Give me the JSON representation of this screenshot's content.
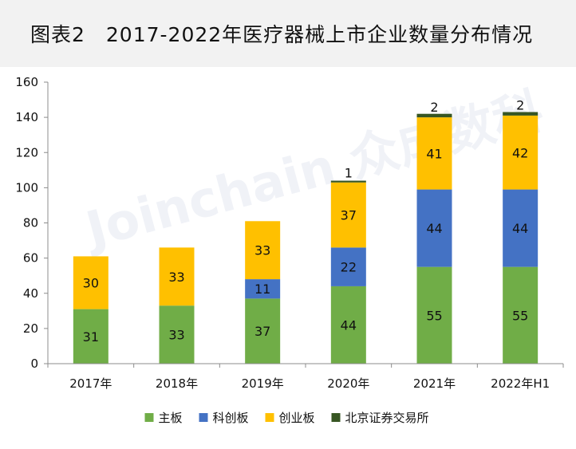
{
  "title": "图表2　2017-2022年医疗器械上市企业数量分布情况",
  "watermark": "Joinchain 众成数科",
  "chart_data": {
    "type": "bar",
    "stacked": true,
    "categories": [
      "2017年",
      "2018年",
      "2019年",
      "2020年",
      "2021年",
      "2022年H1"
    ],
    "series": [
      {
        "name": "主板",
        "color": "#70ad47",
        "values": [
          31,
          33,
          37,
          44,
          55,
          55
        ]
      },
      {
        "name": "科创板",
        "color": "#4472c4",
        "values": [
          0,
          0,
          11,
          22,
          44,
          44
        ]
      },
      {
        "name": "创业板",
        "color": "#ffc000",
        "values": [
          30,
          33,
          33,
          37,
          41,
          42
        ]
      },
      {
        "name": "北京证券交易所",
        "color": "#375623",
        "values": [
          0,
          0,
          0,
          1,
          2,
          2
        ]
      }
    ],
    "ylim": [
      0,
      160
    ],
    "yticks": [
      0,
      20,
      40,
      60,
      80,
      100,
      120,
      140,
      160
    ],
    "grid": false,
    "legend": "bottom",
    "xlabel": "",
    "ylabel": ""
  }
}
